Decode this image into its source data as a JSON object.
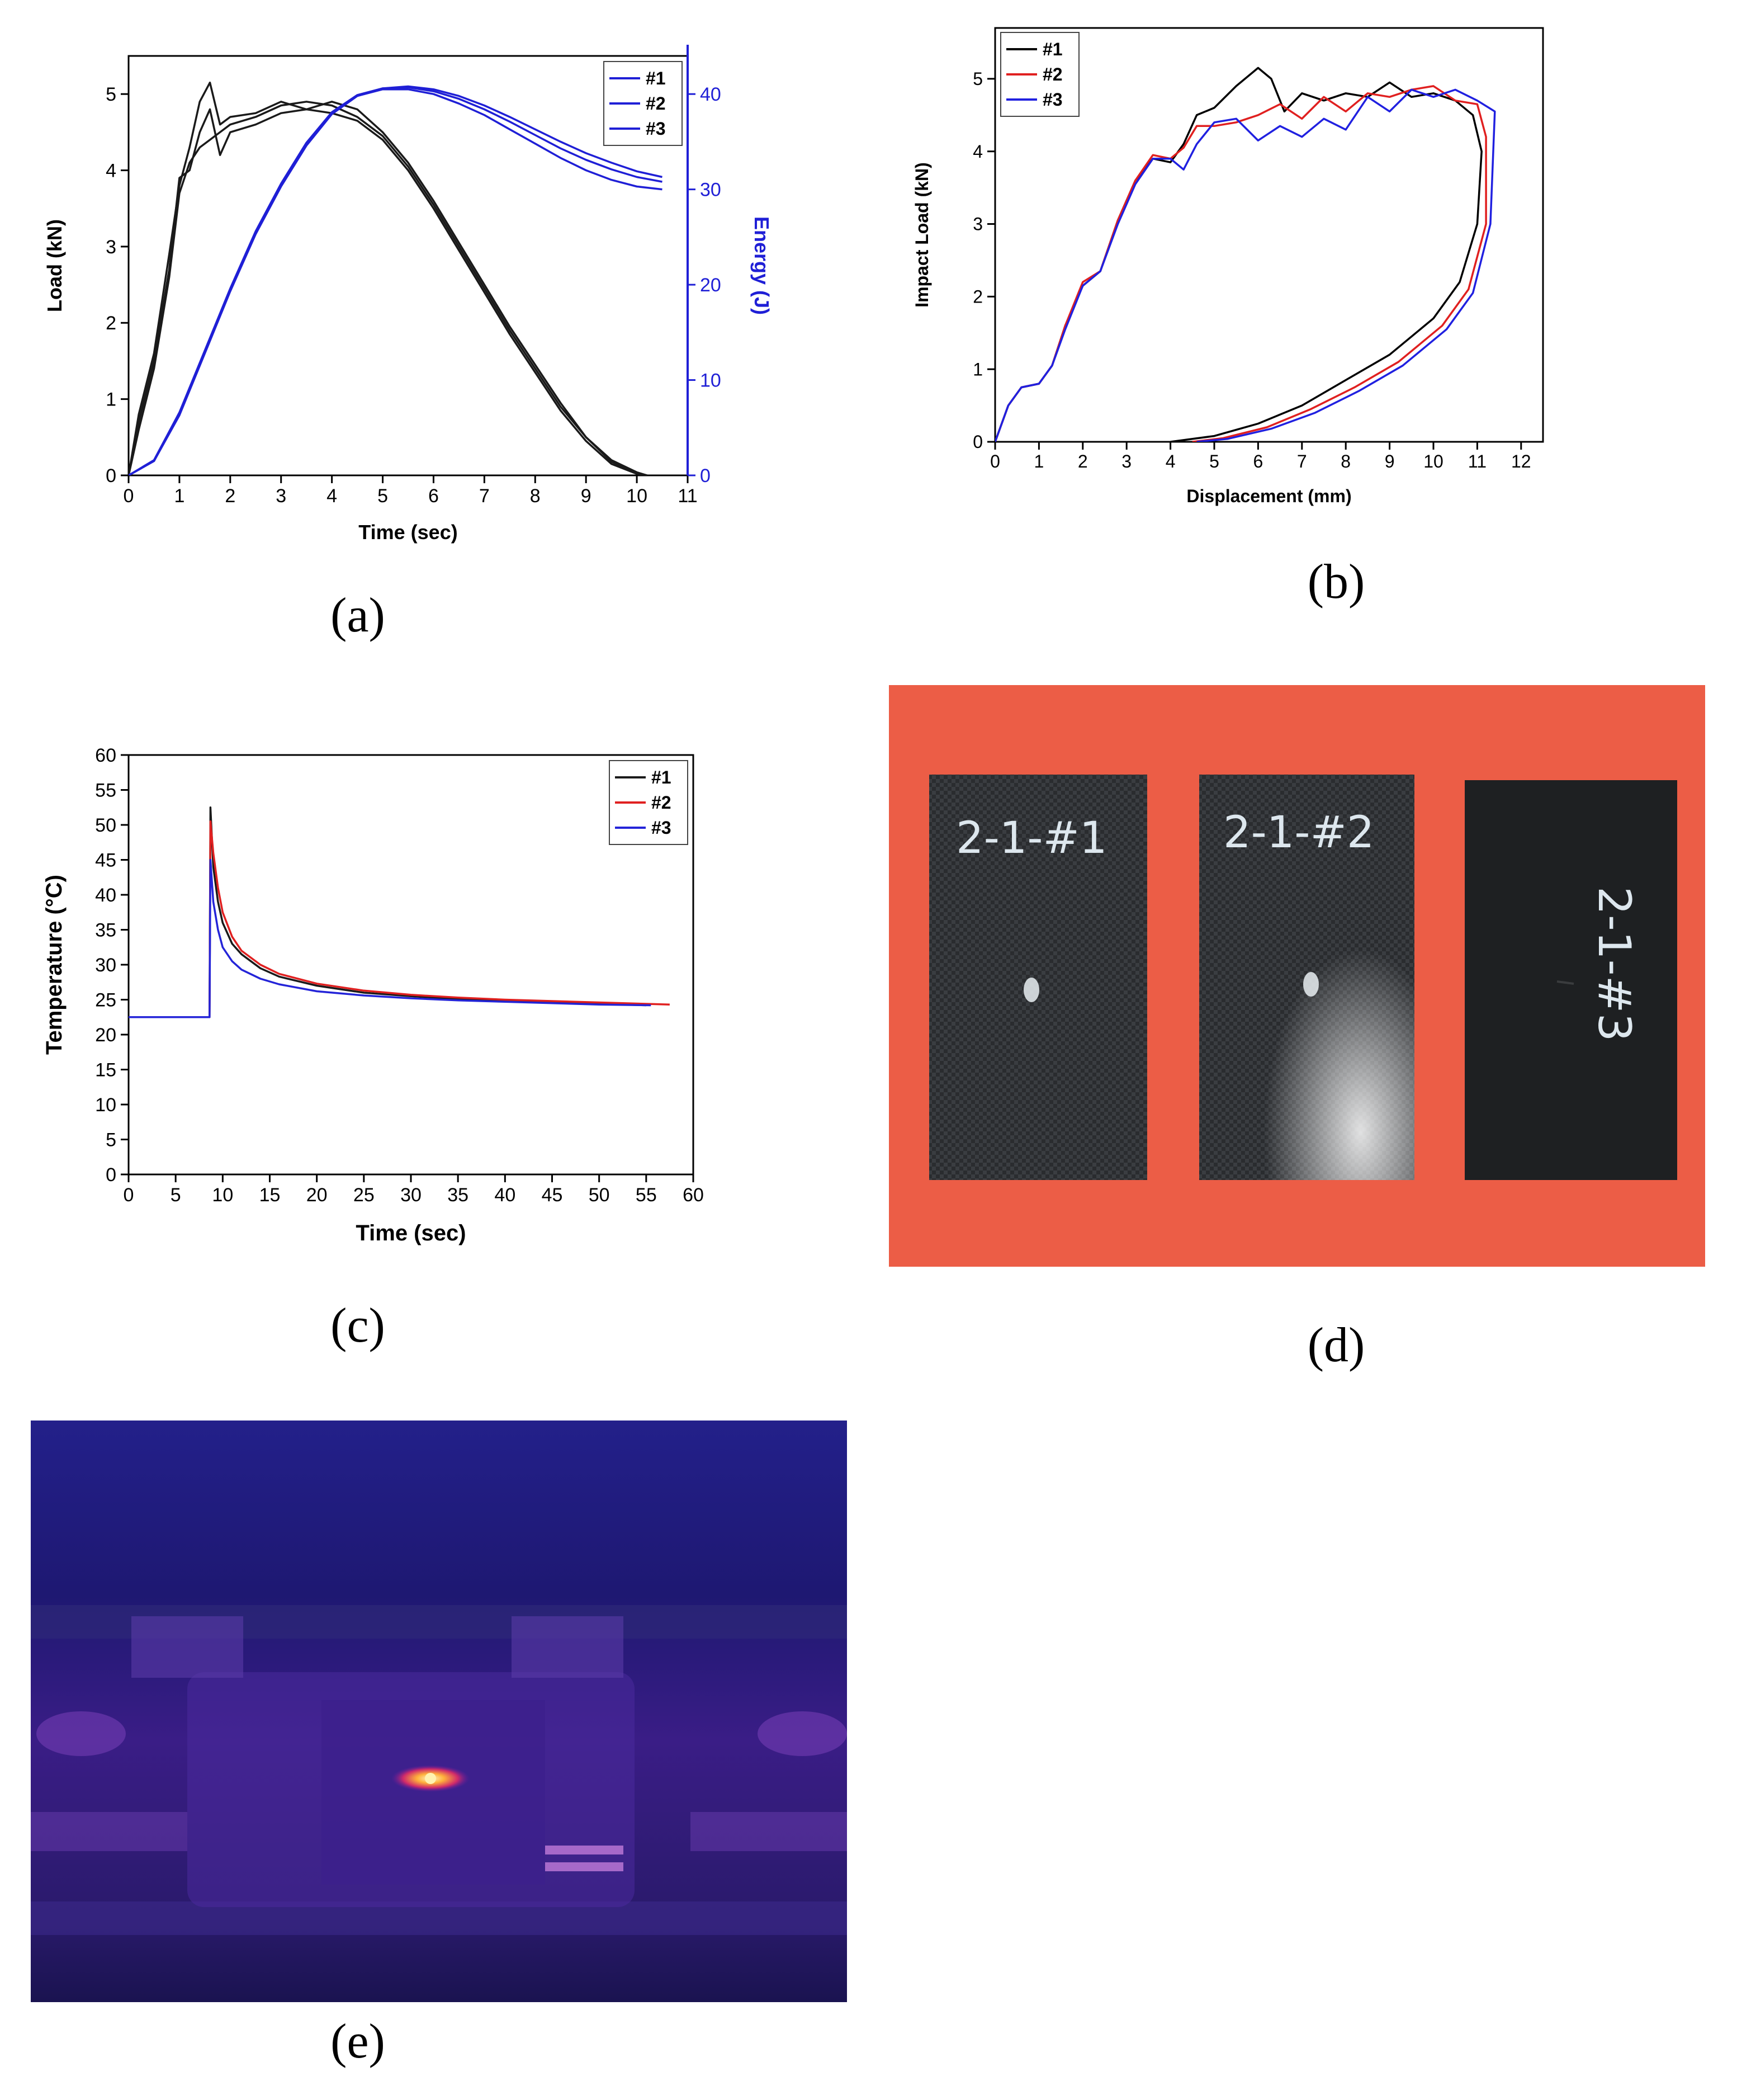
{
  "captions": {
    "a": "(a)",
    "b": "(b)",
    "c": "(c)",
    "d": "(d)",
    "e": "(e)"
  },
  "chart_data": [
    {
      "id": "a",
      "type": "line",
      "title": "",
      "xlabel": "Time (sec)",
      "ylabel": "Load (kN)",
      "y2label": "Energy (J)",
      "xlim": [
        0,
        11
      ],
      "ylim": [
        0,
        5.5
      ],
      "y2lim": [
        0,
        44
      ],
      "xticks": [
        0,
        1,
        2,
        3,
        4,
        5,
        6,
        7,
        8,
        9,
        10,
        11
      ],
      "yticks": [
        0,
        1,
        2,
        3,
        4,
        5
      ],
      "y2ticks": [
        0,
        10,
        20,
        30,
        40
      ],
      "legend_position": "top-right",
      "legend": [
        "#1",
        "#2",
        "#3"
      ],
      "colors": {
        "load": "#1a1a1a",
        "energy": "#1f1fd6",
        "axis2": "#1f1fd6"
      },
      "series": [
        {
          "name": "#1",
          "axis": "load",
          "x": [
            0,
            0.2,
            0.5,
            0.8,
            1.0,
            1.2,
            1.4,
            1.6,
            1.8,
            2.0,
            2.5,
            3.0,
            3.5,
            4.0,
            4.5,
            5.0,
            5.5,
            6.0,
            6.5,
            7.0,
            7.5,
            8.0,
            8.5,
            9.0,
            9.5,
            10.0,
            10.2
          ],
          "y": [
            0,
            0.8,
            1.6,
            2.9,
            3.8,
            4.3,
            4.9,
            5.15,
            4.6,
            4.7,
            4.75,
            4.9,
            4.8,
            4.75,
            4.65,
            4.4,
            4.0,
            3.5,
            2.95,
            2.4,
            1.85,
            1.35,
            0.85,
            0.45,
            0.15,
            0.02,
            0
          ]
        },
        {
          "name": "#2",
          "axis": "load",
          "x": [
            0,
            0.2,
            0.5,
            0.8,
            1.0,
            1.2,
            1.4,
            1.6,
            1.8,
            2.0,
            2.5,
            3.0,
            3.5,
            4.0,
            4.5,
            5.0,
            5.5,
            6.0,
            6.5,
            7.0,
            7.5,
            8.0,
            8.5,
            9.0,
            9.5,
            10.0,
            10.2
          ],
          "y": [
            0,
            0.6,
            1.4,
            2.6,
            3.7,
            4.1,
            4.3,
            4.4,
            4.5,
            4.6,
            4.7,
            4.85,
            4.9,
            4.85,
            4.7,
            4.45,
            4.05,
            3.55,
            3.0,
            2.45,
            1.9,
            1.4,
            0.9,
            0.5,
            0.18,
            0.03,
            0
          ]
        },
        {
          "name": "#3",
          "axis": "load",
          "x": [
            0,
            0.2,
            0.5,
            0.8,
            1.0,
            1.2,
            1.4,
            1.6,
            1.8,
            2.0,
            2.5,
            3.0,
            3.5,
            4.0,
            4.5,
            5.0,
            5.5,
            6.0,
            6.5,
            7.0,
            7.5,
            8.0,
            8.5,
            9.0,
            9.5,
            10.0,
            10.2
          ],
          "y": [
            0,
            0.7,
            1.5,
            2.7,
            3.9,
            4.0,
            4.5,
            4.8,
            4.2,
            4.5,
            4.6,
            4.75,
            4.8,
            4.9,
            4.8,
            4.5,
            4.1,
            3.6,
            3.05,
            2.5,
            1.95,
            1.45,
            0.95,
            0.5,
            0.2,
            0.04,
            0
          ]
        },
        {
          "name": "#1",
          "axis": "energy",
          "x": [
            0,
            0.5,
            1.0,
            1.5,
            2.0,
            2.5,
            3.0,
            3.5,
            4.0,
            4.5,
            5.0,
            5.5,
            6.0,
            6.5,
            7.0,
            7.5,
            8.0,
            8.5,
            9.0,
            9.5,
            10.0,
            10.5
          ],
          "y": [
            0,
            1.5,
            6.5,
            13,
            19.5,
            25.5,
            30.5,
            34.8,
            38.0,
            39.8,
            40.5,
            40.5,
            40.0,
            39.0,
            37.8,
            36.3,
            34.8,
            33.3,
            32.0,
            31.0,
            30.3,
            30.0
          ]
        },
        {
          "name": "#2",
          "axis": "energy",
          "x": [
            0,
            0.5,
            1.0,
            1.5,
            2.0,
            2.5,
            3.0,
            3.5,
            4.0,
            4.5,
            5.0,
            5.5,
            6.0,
            6.5,
            7.0,
            7.5,
            8.0,
            8.5,
            9.0,
            9.5,
            10.0,
            10.5
          ],
          "y": [
            0,
            1.5,
            6.3,
            12.8,
            19.3,
            25.3,
            30.3,
            34.6,
            37.9,
            39.8,
            40.6,
            40.8,
            40.5,
            39.8,
            38.8,
            37.6,
            36.3,
            35.0,
            33.8,
            32.8,
            31.9,
            31.3
          ]
        },
        {
          "name": "#3",
          "axis": "energy",
          "x": [
            0,
            0.5,
            1.0,
            1.5,
            2.0,
            2.5,
            3.0,
            3.5,
            4.0,
            4.5,
            5.0,
            5.5,
            6.0,
            6.5,
            7.0,
            7.5,
            8.0,
            8.5,
            9.0,
            9.5,
            10.0,
            10.5
          ],
          "y": [
            0,
            1.6,
            6.6,
            13.1,
            19.6,
            25.6,
            30.6,
            34.9,
            38.1,
            39.9,
            40.6,
            40.7,
            40.3,
            39.5,
            38.4,
            37.1,
            35.7,
            34.3,
            33.1,
            32.1,
            31.3,
            30.8
          ]
        }
      ]
    },
    {
      "id": "b",
      "type": "line",
      "title": "",
      "xlabel": "Displacement (mm)",
      "ylabel": "Impact Load (kN)",
      "xlim": [
        0,
        12.5
      ],
      "ylim": [
        0,
        5.7
      ],
      "xticks": [
        0,
        1,
        2,
        3,
        4,
        5,
        6,
        7,
        8,
        9,
        10,
        11,
        12
      ],
      "yticks": [
        0,
        1,
        2,
        3,
        4,
        5
      ],
      "legend_position": "top-left",
      "legend": [
        "#1",
        "#2",
        "#3"
      ],
      "colors": {
        "#1": "#000000",
        "#2": "#e02020",
        "#3": "#2020e0"
      },
      "series": [
        {
          "name": "#1",
          "x": [
            0,
            0.3,
            0.6,
            1.0,
            1.3,
            1.6,
            2.0,
            2.4,
            2.8,
            3.2,
            3.6,
            4.0,
            4.3,
            4.6,
            5.0,
            5.5,
            6.0,
            6.3,
            6.6,
            7.0,
            7.5,
            8.0,
            8.5,
            9.0,
            9.5,
            10.0,
            10.5,
            10.9,
            11.1,
            11.0,
            10.6,
            10.0,
            9.0,
            8.0,
            7.0,
            6.0,
            5.0,
            4.0
          ],
          "y": [
            0,
            0.5,
            0.75,
            0.8,
            1.05,
            1.6,
            2.15,
            2.35,
            3.05,
            3.6,
            3.9,
            3.85,
            4.1,
            4.5,
            4.6,
            4.9,
            5.15,
            5.0,
            4.55,
            4.8,
            4.7,
            4.8,
            4.75,
            4.95,
            4.75,
            4.8,
            4.7,
            4.5,
            4.0,
            3.0,
            2.2,
            1.7,
            1.2,
            0.85,
            0.5,
            0.25,
            0.08,
            0
          ]
        },
        {
          "name": "#2",
          "x": [
            0,
            0.3,
            0.6,
            1.0,
            1.3,
            1.6,
            2.0,
            2.4,
            2.8,
            3.2,
            3.6,
            4.0,
            4.3,
            4.6,
            5.0,
            5.5,
            6.0,
            6.5,
            7.0,
            7.5,
            8.0,
            8.5,
            9.0,
            9.5,
            10.0,
            10.5,
            11.0,
            11.2,
            11.2,
            10.8,
            10.2,
            9.2,
            8.2,
            7.2,
            6.2,
            5.2,
            4.5
          ],
          "y": [
            0,
            0.5,
            0.75,
            0.8,
            1.05,
            1.6,
            2.2,
            2.35,
            3.05,
            3.6,
            3.95,
            3.9,
            4.05,
            4.35,
            4.35,
            4.4,
            4.5,
            4.65,
            4.45,
            4.75,
            4.55,
            4.8,
            4.75,
            4.85,
            4.9,
            4.7,
            4.65,
            4.2,
            3.0,
            2.1,
            1.6,
            1.1,
            0.75,
            0.45,
            0.2,
            0.05,
            0
          ]
        },
        {
          "name": "#3",
          "x": [
            0,
            0.3,
            0.6,
            1.0,
            1.3,
            1.6,
            2.0,
            2.4,
            2.8,
            3.2,
            3.6,
            4.0,
            4.3,
            4.6,
            5.0,
            5.5,
            6.0,
            6.5,
            7.0,
            7.5,
            8.0,
            8.5,
            9.0,
            9.5,
            10.0,
            10.5,
            11.0,
            11.4,
            11.3,
            10.9,
            10.3,
            9.3,
            8.3,
            7.3,
            6.3,
            5.3,
            4.6
          ],
          "y": [
            0,
            0.5,
            0.75,
            0.8,
            1.05,
            1.55,
            2.15,
            2.35,
            3.0,
            3.55,
            3.9,
            3.9,
            3.75,
            4.1,
            4.4,
            4.45,
            4.15,
            4.35,
            4.2,
            4.45,
            4.3,
            4.75,
            4.55,
            4.85,
            4.75,
            4.85,
            4.7,
            4.55,
            3.0,
            2.05,
            1.55,
            1.05,
            0.7,
            0.4,
            0.18,
            0.04,
            0
          ]
        }
      ]
    },
    {
      "id": "c",
      "type": "line",
      "title": "",
      "xlabel": "Time (sec)",
      "ylabel": "Temperature (°C)",
      "xlim": [
        0,
        60
      ],
      "ylim": [
        0,
        60
      ],
      "xticks": [
        0,
        5,
        10,
        15,
        20,
        25,
        30,
        35,
        40,
        45,
        50,
        55,
        60
      ],
      "yticks": [
        0,
        5,
        10,
        15,
        20,
        25,
        30,
        35,
        40,
        45,
        50,
        55,
        60
      ],
      "legend_position": "top-right",
      "legend": [
        "#1",
        "#2",
        "#3"
      ],
      "colors": {
        "#1": "#1a1a1a",
        "#2": "#e02020",
        "#3": "#2424d8"
      },
      "series": [
        {
          "name": "#1",
          "x": [
            0,
            8.6,
            8.7,
            9.0,
            9.5,
            10,
            11,
            12,
            14,
            16,
            20,
            25,
            30,
            35,
            40,
            45,
            50,
            55
          ],
          "y": [
            22.5,
            22.5,
            52.5,
            44,
            39,
            36,
            33,
            31.5,
            29.5,
            28.3,
            27,
            26,
            25.5,
            25.1,
            24.8,
            24.6,
            24.4,
            24.2
          ]
        },
        {
          "name": "#2",
          "x": [
            0,
            8.6,
            8.7,
            9.0,
            9.5,
            10,
            11,
            12,
            14,
            16,
            20,
            25,
            30,
            35,
            40,
            45,
            50,
            55,
            57.5
          ],
          "y": [
            22.5,
            22.5,
            50.5,
            46,
            41,
            37.5,
            34,
            32,
            30,
            28.7,
            27.3,
            26.3,
            25.7,
            25.3,
            25.0,
            24.8,
            24.6,
            24.4,
            24.3
          ]
        },
        {
          "name": "#3",
          "x": [
            0,
            8.6,
            8.7,
            9.0,
            9.5,
            10,
            11,
            12,
            14,
            16,
            20,
            25,
            30,
            35,
            40,
            45,
            50,
            55.5
          ],
          "y": [
            22.5,
            22.5,
            45,
            39,
            35,
            32.5,
            30.5,
            29.3,
            28,
            27.2,
            26.2,
            25.6,
            25.2,
            24.9,
            24.7,
            24.5,
            24.3,
            24.2
          ]
        }
      ]
    }
  ],
  "photo_d": {
    "labels": [
      "2-1-#1",
      "2-1-#2",
      "2-1-#3"
    ],
    "background": "#ec5d46",
    "plate": "#1d1f21"
  },
  "photo_e": {
    "background": "#1c1466",
    "hot": "#ffd76a"
  }
}
